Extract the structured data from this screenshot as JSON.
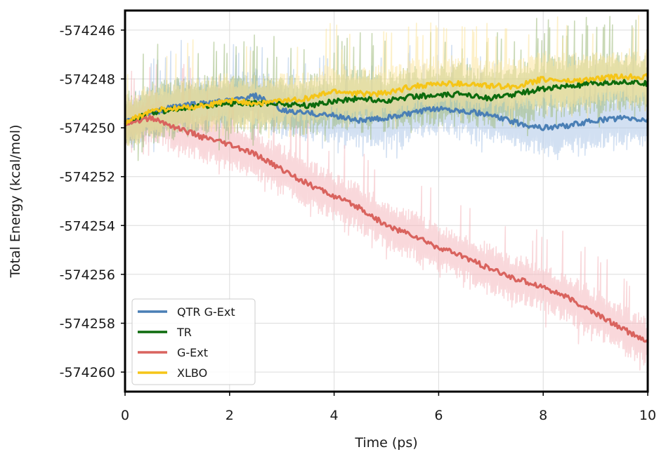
{
  "chart_data": {
    "type": "line",
    "title": "",
    "xlabel": "Time (ps)",
    "ylabel": "Total Energy (kcal/mol)",
    "xlim": [
      0,
      10
    ],
    "ylim": [
      -574260.8,
      -574245.2
    ],
    "xticks": [
      0,
      2,
      4,
      6,
      8,
      10
    ],
    "xtick_labels": [
      "0",
      "2",
      "4",
      "6",
      "8",
      "10"
    ],
    "yticks": [
      -574246,
      -574248,
      -574250,
      -574252,
      -574254,
      -574256,
      -574258,
      -574260
    ],
    "ytick_labels": [
      "-574246",
      "-574248",
      "-574250",
      "-574252",
      "-574254",
      "-574256",
      "-574258",
      "-574260"
    ],
    "grid": true,
    "legend_position": "bottom-left",
    "series": [
      {
        "name": "QTR G-Ext",
        "color": "#4a7fb5",
        "band_color": "#adc6e8",
        "x": [
          0,
          0.5,
          1,
          1.5,
          2,
          2.5,
          2.8,
          3,
          3.5,
          4,
          4.5,
          5,
          5.5,
          6,
          6.5,
          7,
          7.5,
          8,
          8.5,
          9,
          9.5,
          10
        ],
        "values": [
          -574249.8,
          -574249.4,
          -574249.1,
          -574249.0,
          -574248.9,
          -574248.7,
          -574249.0,
          -574249.3,
          -574249.4,
          -574249.5,
          -574249.7,
          -574249.6,
          -574249.4,
          -574249.2,
          -574249.3,
          -574249.5,
          -574249.8,
          -574250.0,
          -574249.9,
          -574249.7,
          -574249.6,
          -574249.7
        ],
        "band_halfwidth": 1.0
      },
      {
        "name": "TR",
        "color": "#0d6b0d",
        "band_color": "#9cba7a",
        "x": [
          0,
          0.5,
          1,
          1.5,
          2,
          2.5,
          3,
          3.5,
          4,
          4.5,
          5,
          5.5,
          6,
          6.5,
          7,
          7.5,
          8,
          8.5,
          9,
          9.5,
          10
        ],
        "values": [
          -574249.8,
          -574249.4,
          -574249.2,
          -574249.1,
          -574249.0,
          -574249.0,
          -574249.0,
          -574249.1,
          -574248.9,
          -574248.8,
          -574248.9,
          -574248.7,
          -574248.7,
          -574248.6,
          -574248.8,
          -574248.6,
          -574248.4,
          -574248.3,
          -574248.2,
          -574248.1,
          -574248.2
        ],
        "band_halfwidth": 1.1
      },
      {
        "name": "G-Ext",
        "color": "#d9635e",
        "band_color": "#f4b8bd",
        "x": [
          0,
          0.5,
          1,
          1.5,
          2,
          2.5,
          3,
          3.5,
          4,
          4.5,
          5,
          5.5,
          6,
          6.5,
          7,
          7.5,
          8,
          8.5,
          9,
          9.5,
          10
        ],
        "values": [
          -574249.8,
          -574249.6,
          -574250.0,
          -574250.4,
          -574250.7,
          -574251.1,
          -574251.7,
          -574252.3,
          -574252.8,
          -574253.3,
          -574254.0,
          -574254.4,
          -574254.9,
          -574255.3,
          -574255.8,
          -574256.2,
          -574256.5,
          -574257.0,
          -574257.6,
          -574258.2,
          -574258.8
        ],
        "band_halfwidth": 0.9
      },
      {
        "name": "XLBO",
        "color": "#f5c518",
        "band_color": "#fbe39a",
        "x": [
          0,
          0.5,
          1,
          1.5,
          2,
          2.5,
          3,
          3.5,
          4,
          4.5,
          5,
          5.5,
          6,
          6.5,
          7,
          7.5,
          8,
          8.5,
          9,
          9.5,
          10
        ],
        "values": [
          -574249.8,
          -574249.3,
          -574249.2,
          -574249.1,
          -574248.9,
          -574249.0,
          -574248.9,
          -574248.8,
          -574248.5,
          -574248.6,
          -574248.6,
          -574248.3,
          -574248.2,
          -574248.2,
          -574248.3,
          -574248.3,
          -574248.0,
          -574248.1,
          -574248.0,
          -574247.9,
          -574247.9
        ],
        "band_halfwidth": 1.0
      }
    ]
  }
}
